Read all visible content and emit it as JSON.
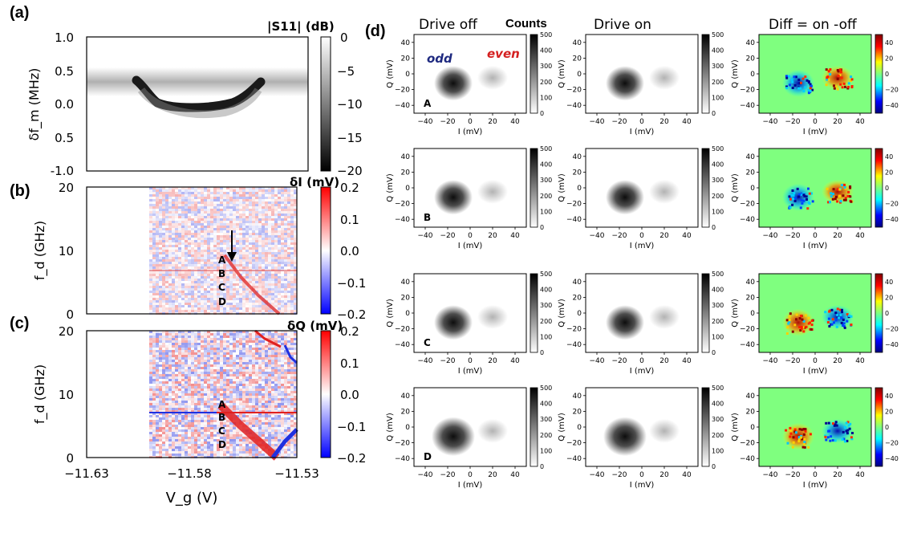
{
  "figure": {
    "panel_labels": [
      "(a)",
      "(b)",
      "(c)",
      "(d)"
    ],
    "column_headers": [
      "Drive off",
      "Drive on",
      "Diff = on -off"
    ],
    "counts_label": "Counts",
    "odd_label": "odd",
    "even_label": "even",
    "row_markers": [
      "A",
      "B",
      "C",
      "D"
    ],
    "colors": {
      "red": "#cc1a1a",
      "blue": "#1a1acc",
      "odd_text": "#1f2a80",
      "even_text": "#d42020",
      "diff_bg": "#7fff7f"
    }
  },
  "chart_data": [
    {
      "id": "a",
      "type": "heatmap",
      "title": "",
      "xlabel": "V_g (V)",
      "ylabel": "δf_m (MHz)",
      "xlim": [
        -11.63,
        -11.53
      ],
      "ylim": [
        -1.0,
        1.0
      ],
      "yticks": [
        "1.0",
        "0.5",
        "0.0",
        "0.5",
        "-1.0"
      ],
      "colorbar_label": "|S11| (dB)",
      "colorbar_ticks": [
        "0",
        "−5",
        "−10",
        "−15",
        "−20"
      ],
      "colorbar_range": [
        -20,
        0
      ],
      "colormap": "gray"
    },
    {
      "id": "b",
      "type": "heatmap",
      "xlabel": "V_g (V)",
      "ylabel": "f_d (GHz)",
      "xlim": [
        -11.63,
        -11.53
      ],
      "ylim": [
        0,
        20
      ],
      "yticks": [
        "20",
        "10",
        "0"
      ],
      "colorbar_label": "δI (mV)",
      "colorbar_ticks": [
        "0.2",
        "0.1",
        "0.0",
        "−0.1",
        "−0.2"
      ],
      "colorbar_range": [
        -0.2,
        0.2
      ],
      "colormap": "bwr",
      "markers": [
        "A",
        "B",
        "C",
        "D"
      ]
    },
    {
      "id": "c",
      "type": "heatmap",
      "xlabel": "V_g (V)",
      "ylabel": "f_d (GHz)",
      "xlim": [
        -11.63,
        -11.53
      ],
      "ylim": [
        0,
        20
      ],
      "xticks": [
        "−11.63",
        "−11.58",
        "−11.53"
      ],
      "yticks": [
        "20",
        "10",
        "0"
      ],
      "colorbar_label": "δQ (mV)",
      "colorbar_ticks": [
        "0.2",
        "0.1",
        "0.0",
        "−0.1",
        "−0.2"
      ],
      "colorbar_range": [
        -0.2,
        0.2
      ],
      "colormap": "bwr",
      "markers": [
        "A",
        "B",
        "C",
        "D"
      ]
    },
    {
      "id": "d",
      "type": "heatmap",
      "grid": "4 rows (A–D) × 3 columns (Drive off, Drive on, Diff)",
      "xlabel": "I (mV)",
      "ylabel": "Q (mV)",
      "xlim": [
        -50,
        50
      ],
      "ylim": [
        -50,
        50
      ],
      "xticks": [
        "−40",
        "−20",
        "0",
        "20",
        "40"
      ],
      "yticks": [
        "40",
        "20",
        "0",
        "−20",
        "−40"
      ],
      "counts_colorbar_ticks": [
        "500",
        "400",
        "300",
        "200",
        "100",
        "0"
      ],
      "counts_range": [
        0,
        500
      ],
      "diff_colorbar_ticks": [
        "40",
        "20",
        "0",
        "−20",
        "−40"
      ],
      "diff_range": [
        -50,
        50
      ],
      "blob_centers_mV": {
        "odd": [
          -15,
          -12
        ],
        "even": [
          20,
          -5
        ]
      },
      "diff_sign_by_row": {
        "A": [
          -1,
          1
        ],
        "B": [
          -1,
          1
        ],
        "C": [
          1,
          -1
        ],
        "D": [
          1,
          -1
        ]
      }
    }
  ]
}
